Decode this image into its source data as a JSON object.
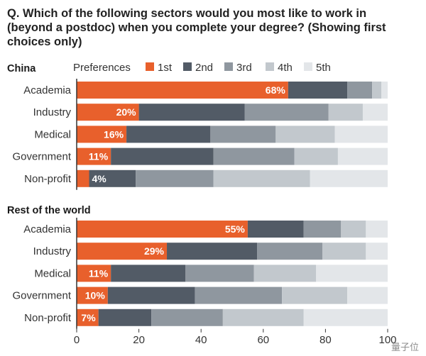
{
  "title": "Q. Which of the following sectors would you most like to work in (beyond a postdoc) when you complete your degree? (Showing first choices only)",
  "legend": {
    "label": "Preferences",
    "items": [
      "1st",
      "2nd",
      "3rd",
      "4th",
      "5th"
    ],
    "colors": [
      "#e8602c",
      "#525b66",
      "#8f979f",
      "#c2c8cd",
      "#e3e6e9"
    ]
  },
  "watermark": "量子位",
  "chart_data": [
    {
      "type": "bar",
      "orientation": "horizontal",
      "stacked": true,
      "title": "China",
      "categories": [
        "Academia",
        "Industry",
        "Medical",
        "Government",
        "Non-profit"
      ],
      "series": [
        {
          "name": "1st",
          "values": [
            68,
            20,
            16,
            11,
            4
          ]
        },
        {
          "name": "2nd",
          "values": [
            19,
            34,
            27,
            33,
            15
          ]
        },
        {
          "name": "3rd",
          "values": [
            8,
            27,
            21,
            26,
            25
          ]
        },
        {
          "name": "4th",
          "values": [
            3,
            11,
            19,
            14,
            31
          ]
        },
        {
          "name": "5th",
          "values": [
            2,
            8,
            17,
            16,
            25
          ]
        }
      ],
      "data_labels": [
        "68%",
        "20%",
        "16%",
        "11%",
        "4%"
      ],
      "xlim": [
        0,
        100
      ]
    },
    {
      "type": "bar",
      "orientation": "horizontal",
      "stacked": true,
      "title": "Rest of the world",
      "categories": [
        "Academia",
        "Industry",
        "Medical",
        "Government",
        "Non-profit"
      ],
      "series": [
        {
          "name": "1st",
          "values": [
            55,
            29,
            11,
            10,
            7
          ]
        },
        {
          "name": "2nd",
          "values": [
            18,
            29,
            24,
            28,
            17
          ]
        },
        {
          "name": "3rd",
          "values": [
            12,
            21,
            22,
            28,
            23
          ]
        },
        {
          "name": "4th",
          "values": [
            8,
            14,
            20,
            21,
            26
          ]
        },
        {
          "name": "5th",
          "values": [
            7,
            7,
            23,
            13,
            27
          ]
        }
      ],
      "data_labels": [
        "55%",
        "29%",
        "11%",
        "10%",
        "7%"
      ],
      "xlim": [
        0,
        100
      ],
      "xticks": [
        "0",
        "20",
        "40",
        "60",
        "80",
        "100"
      ]
    }
  ]
}
